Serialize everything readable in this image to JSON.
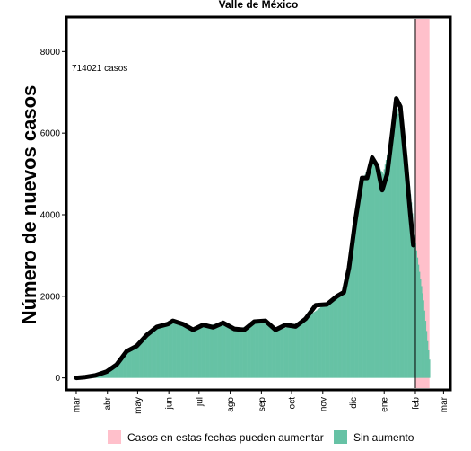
{
  "chart_data": {
    "type": "bar",
    "title": "Valle de México",
    "ylabel": "Número de nuevos casos",
    "xlabel": "",
    "annotation": "714021 casos",
    "ylim": [
      -250,
      8800
    ],
    "yticks": [
      0,
      2000,
      4000,
      6000,
      8000
    ],
    "xlim": [
      "2020-02-22",
      "2021-03-06"
    ],
    "xticks": [
      {
        "date": "2020-03-01",
        "label": "mar"
      },
      {
        "date": "2020-04-01",
        "label": "abr"
      },
      {
        "date": "2020-05-01",
        "label": "may"
      },
      {
        "date": "2020-06-01",
        "label": "jun"
      },
      {
        "date": "2020-07-01",
        "label": "jul"
      },
      {
        "date": "2020-08-01",
        "label": "ago"
      },
      {
        "date": "2020-09-01",
        "label": "sep"
      },
      {
        "date": "2020-10-01",
        "label": "oct"
      },
      {
        "date": "2020-11-01",
        "label": "nov"
      },
      {
        "date": "2020-12-01",
        "label": "dic"
      },
      {
        "date": "2021-01-01",
        "label": "ene"
      },
      {
        "date": "2021-02-01",
        "label": "feb"
      },
      {
        "date": "2021-03-01",
        "label": "mar"
      }
    ],
    "grid": false,
    "legend_position": "bottom",
    "pending_period": {
      "start": "2021-02-01",
      "end": "2021-02-15"
    },
    "cutoff_date": "2021-02-01",
    "colors": {
      "bars": "#66c2a5",
      "pending": "#ffc0cb",
      "line": "#000000",
      "frame": "#000000"
    },
    "series": [
      {
        "name": "Sin aumento",
        "type": "bar",
        "points": [
          [
            "2020-03-01",
            5
          ],
          [
            "2020-03-10",
            25
          ],
          [
            "2020-03-20",
            70
          ],
          [
            "2020-03-31",
            160
          ],
          [
            "2020-04-10",
            350
          ],
          [
            "2020-04-20",
            650
          ],
          [
            "2020-04-30",
            800
          ],
          [
            "2020-05-10",
            1050
          ],
          [
            "2020-05-20",
            1250
          ],
          [
            "2020-05-31",
            1380
          ],
          [
            "2020-06-10",
            1400
          ],
          [
            "2020-06-20",
            1250
          ],
          [
            "2020-06-30",
            1200
          ],
          [
            "2020-07-10",
            1300
          ],
          [
            "2020-07-20",
            1320
          ],
          [
            "2020-07-31",
            1250
          ],
          [
            "2020-08-10",
            1200
          ],
          [
            "2020-08-20",
            1300
          ],
          [
            "2020-08-31",
            1380
          ],
          [
            "2020-09-10",
            1300
          ],
          [
            "2020-09-20",
            1180
          ],
          [
            "2020-09-30",
            1280
          ],
          [
            "2020-10-10",
            1380
          ],
          [
            "2020-10-20",
            1550
          ],
          [
            "2020-10-31",
            1750
          ],
          [
            "2020-11-10",
            1850
          ],
          [
            "2020-11-20",
            2100
          ],
          [
            "2020-11-30",
            3200
          ],
          [
            "2020-12-10",
            4800
          ],
          [
            "2020-12-20",
            5400
          ],
          [
            "2020-12-31",
            5000
          ],
          [
            "2021-01-07",
            5800
          ],
          [
            "2021-01-14",
            6600
          ],
          [
            "2021-01-21",
            5700
          ],
          [
            "2021-01-28",
            4300
          ],
          [
            "2021-01-31",
            3500
          ]
        ]
      },
      {
        "name": "Casos en estas fechas pueden aumentar",
        "type": "bar",
        "points": [
          [
            "2021-02-01",
            3300
          ],
          [
            "2021-02-05",
            2600
          ],
          [
            "2021-02-09",
            1900
          ],
          [
            "2021-02-13",
            900
          ],
          [
            "2021-02-15",
            450
          ]
        ]
      },
      {
        "name": "",
        "type": "line",
        "points": [
          [
            "2020-03-01",
            0
          ],
          [
            "2020-03-10",
            20
          ],
          [
            "2020-03-20",
            60
          ],
          [
            "2020-03-31",
            150
          ],
          [
            "2020-04-10",
            320
          ],
          [
            "2020-04-20",
            650
          ],
          [
            "2020-04-30",
            780
          ],
          [
            "2020-05-10",
            1050
          ],
          [
            "2020-05-20",
            1250
          ],
          [
            "2020-05-31",
            1320
          ],
          [
            "2020-06-05",
            1400
          ],
          [
            "2020-06-15",
            1320
          ],
          [
            "2020-06-25",
            1180
          ],
          [
            "2020-07-05",
            1300
          ],
          [
            "2020-07-15",
            1240
          ],
          [
            "2020-07-25",
            1350
          ],
          [
            "2020-08-05",
            1200
          ],
          [
            "2020-08-15",
            1180
          ],
          [
            "2020-08-25",
            1380
          ],
          [
            "2020-09-05",
            1400
          ],
          [
            "2020-09-15",
            1180
          ],
          [
            "2020-09-25",
            1300
          ],
          [
            "2020-10-05",
            1260
          ],
          [
            "2020-10-15",
            1450
          ],
          [
            "2020-10-25",
            1780
          ],
          [
            "2020-11-05",
            1800
          ],
          [
            "2020-11-15",
            2000
          ],
          [
            "2020-11-22",
            2100
          ],
          [
            "2020-11-27",
            2700
          ],
          [
            "2020-12-03",
            3800
          ],
          [
            "2020-12-10",
            4900
          ],
          [
            "2020-12-15",
            4900
          ],
          [
            "2020-12-20",
            5400
          ],
          [
            "2020-12-25",
            5200
          ],
          [
            "2020-12-30",
            4600
          ],
          [
            "2021-01-04",
            5000
          ],
          [
            "2021-01-09",
            6000
          ],
          [
            "2021-01-13",
            6850
          ],
          [
            "2021-01-17",
            6650
          ],
          [
            "2021-01-22",
            5400
          ],
          [
            "2021-01-27",
            4000
          ],
          [
            "2021-01-30",
            3250
          ]
        ]
      }
    ]
  }
}
